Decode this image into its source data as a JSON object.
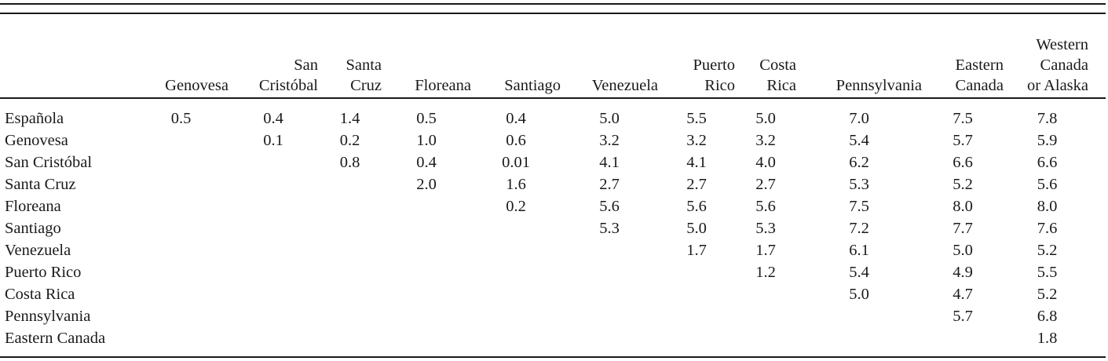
{
  "columns": [
    [
      "Genovesa"
    ],
    [
      "San",
      "Cristóbal"
    ],
    [
      "Santa",
      "Cruz"
    ],
    [
      "Floreana"
    ],
    [
      "Santiago"
    ],
    [
      "Venezuela"
    ],
    [
      "Puerto",
      "Rico"
    ],
    [
      "Costa",
      "Rica"
    ],
    [
      "Pennsylvania"
    ],
    [
      "Eastern",
      "Canada"
    ],
    [
      "Western",
      "Canada",
      "or Alaska"
    ]
  ],
  "rows": [
    {
      "label": "Española",
      "values": [
        "0.5",
        "0.4",
        "1.4",
        "0.5",
        "0.4",
        "5.0",
        "5.5",
        "5.0",
        "7.0",
        "7.5",
        "7.8"
      ]
    },
    {
      "label": "Genovesa",
      "values": [
        "",
        "0.1",
        "0.2",
        "1.0",
        "0.6",
        "3.2",
        "3.2",
        "3.2",
        "5.4",
        "5.7",
        "5.9"
      ]
    },
    {
      "label": "San Cristóbal",
      "values": [
        "",
        "",
        "0.8",
        "0.4",
        "0.01",
        "4.1",
        "4.1",
        "4.0",
        "6.2",
        "6.6",
        "6.6"
      ]
    },
    {
      "label": "Santa Cruz",
      "values": [
        "",
        "",
        "",
        "2.0",
        "1.6",
        "2.7",
        "2.7",
        "2.7",
        "5.3",
        "5.2",
        "5.6"
      ]
    },
    {
      "label": "Floreana",
      "values": [
        "",
        "",
        "",
        "",
        "0.2",
        "5.6",
        "5.6",
        "5.6",
        "7.5",
        "8.0",
        "8.0"
      ]
    },
    {
      "label": "Santiago",
      "values": [
        "",
        "",
        "",
        "",
        "",
        "5.3",
        "5.0",
        "5.3",
        "7.2",
        "7.7",
        "7.6"
      ]
    },
    {
      "label": "Venezuela",
      "values": [
        "",
        "",
        "",
        "",
        "",
        "",
        "1.7",
        "1.7",
        "6.1",
        "5.0",
        "5.2"
      ]
    },
    {
      "label": "Puerto Rico",
      "values": [
        "",
        "",
        "",
        "",
        "",
        "",
        "",
        "1.2",
        "5.4",
        "4.9",
        "5.5"
      ]
    },
    {
      "label": "Costa Rica",
      "values": [
        "",
        "",
        "",
        "",
        "",
        "",
        "",
        "",
        "5.0",
        "4.7",
        "5.2"
      ]
    },
    {
      "label": "Pennsylvania",
      "values": [
        "",
        "",
        "",
        "",
        "",
        "",
        "",
        "",
        "",
        "5.7",
        "6.8"
      ]
    },
    {
      "label": "Eastern Canada",
      "values": [
        "",
        "",
        "",
        "",
        "",
        "",
        "",
        "",
        "",
        "",
        "1.8"
      ]
    }
  ]
}
